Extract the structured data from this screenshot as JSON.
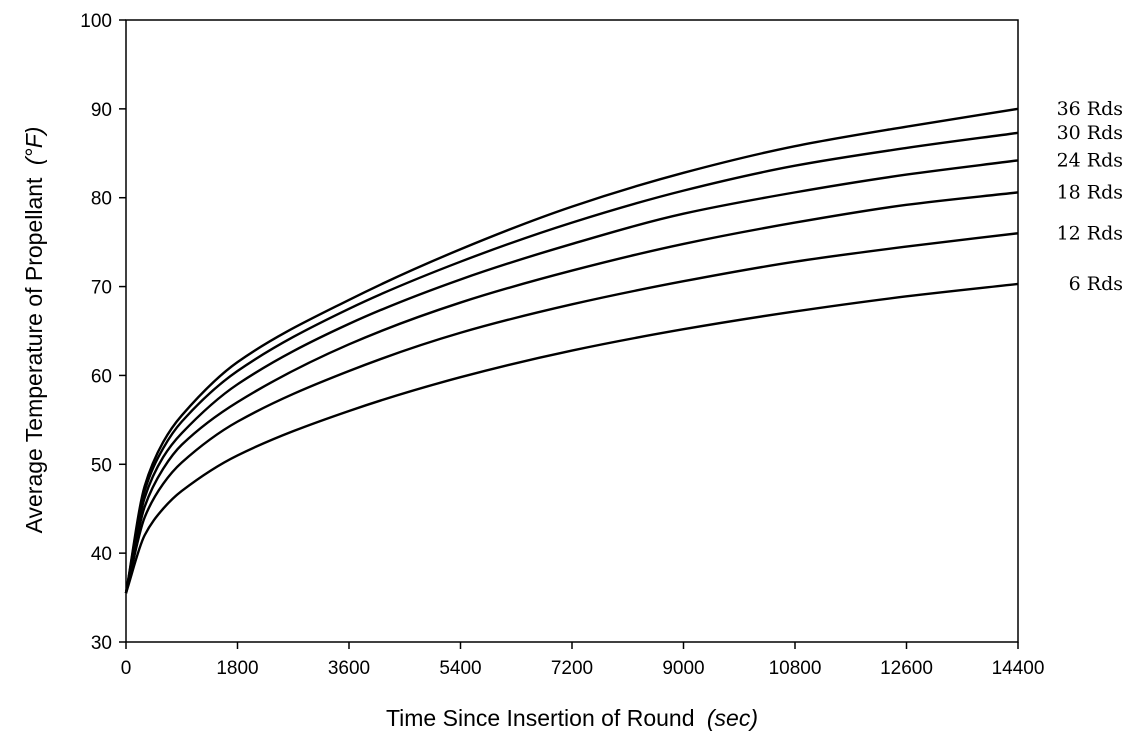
{
  "chart_data": {
    "type": "line",
    "xlabel": "Time Since Insertion of Round",
    "xlabel_unit": "(sec)",
    "ylabel": "Average Temperature of Propellant",
    "ylabel_unit": "(°F)",
    "xlim": [
      0,
      14400
    ],
    "ylim": [
      30,
      100
    ],
    "x_ticks": [
      0,
      1800,
      3600,
      5400,
      7200,
      9000,
      10800,
      12600,
      14400
    ],
    "y_ticks": [
      30,
      40,
      50,
      60,
      70,
      80,
      90,
      100
    ],
    "grid": false,
    "legend": "right-end labels",
    "x": [
      0,
      300,
      600,
      900,
      1800,
      3600,
      5400,
      7200,
      9000,
      10800,
      12600,
      14400
    ],
    "series": [
      {
        "name": "36 Rds",
        "values": [
          35.5,
          47.5,
          52.5,
          55.5,
          61.5,
          68.5,
          74.2,
          79.0,
          82.8,
          85.8,
          88.0,
          90.0
        ]
      },
      {
        "name": "30 Rds",
        "values": [
          35.5,
          47.0,
          51.8,
          54.8,
          60.5,
          67.5,
          72.8,
          77.2,
          80.8,
          83.6,
          85.6,
          87.3
        ]
      },
      {
        "name": "24 Rds",
        "values": [
          35.5,
          46.2,
          50.8,
          53.5,
          59.0,
          65.8,
          70.8,
          74.8,
          78.2,
          80.6,
          82.6,
          84.2
        ]
      },
      {
        "name": "18 Rds",
        "values": [
          35.5,
          45.2,
          49.5,
          52.2,
          57.0,
          63.5,
          68.2,
          71.8,
          74.8,
          77.2,
          79.2,
          80.6
        ]
      },
      {
        "name": "12 Rds",
        "values": [
          35.5,
          44.0,
          47.8,
          50.2,
          54.8,
          60.5,
          64.8,
          68.0,
          70.6,
          72.8,
          74.5,
          76.0
        ]
      },
      {
        "name": "6 Rds",
        "values": [
          35.5,
          42.0,
          45.0,
          47.0,
          51.0,
          56.0,
          59.8,
          62.8,
          65.2,
          67.2,
          68.9,
          70.3
        ]
      }
    ]
  }
}
